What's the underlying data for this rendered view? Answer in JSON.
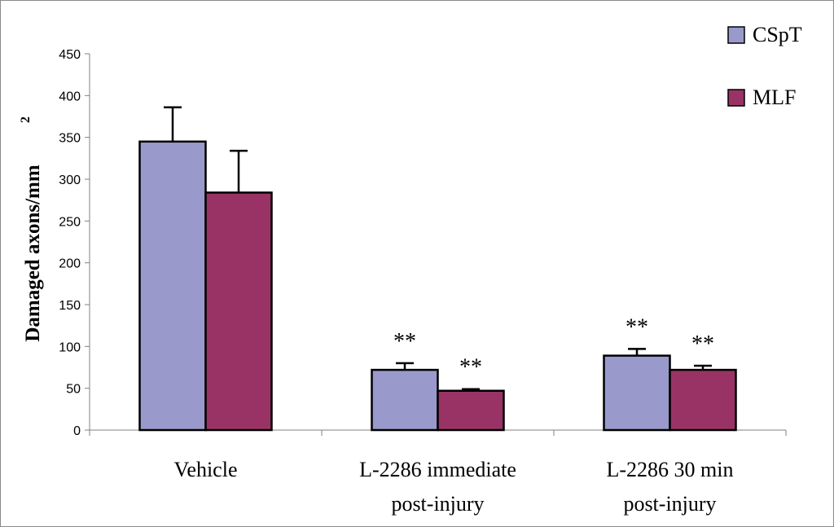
{
  "chart_data": {
    "type": "bar",
    "title": "",
    "ylabel": "Damaged axons/mm",
    "ylabel_superscript": "2",
    "xlabel": "",
    "ylim": [
      0,
      450
    ],
    "yticks": [
      0,
      50,
      100,
      150,
      200,
      250,
      300,
      350,
      400,
      450
    ],
    "categories": [
      [
        "Vehicle"
      ],
      [
        "L-2286 immediate",
        "post-injury"
      ],
      [
        "L-2286 30 min",
        "post-injury"
      ]
    ],
    "series": [
      {
        "name": "CSpT",
        "color": "#9999cc",
        "values": [
          345,
          72,
          89
        ],
        "error": [
          41,
          8,
          8
        ],
        "annotations": [
          "",
          "**",
          "**"
        ]
      },
      {
        "name": "MLF",
        "color": "#993366",
        "values": [
          284,
          47,
          72
        ],
        "error": [
          50,
          2,
          5
        ],
        "annotations": [
          "",
          "**",
          "**"
        ]
      }
    ],
    "legend": {
      "position": "top-right",
      "entries": [
        "CSpT",
        "MLF"
      ]
    },
    "grid": false
  }
}
